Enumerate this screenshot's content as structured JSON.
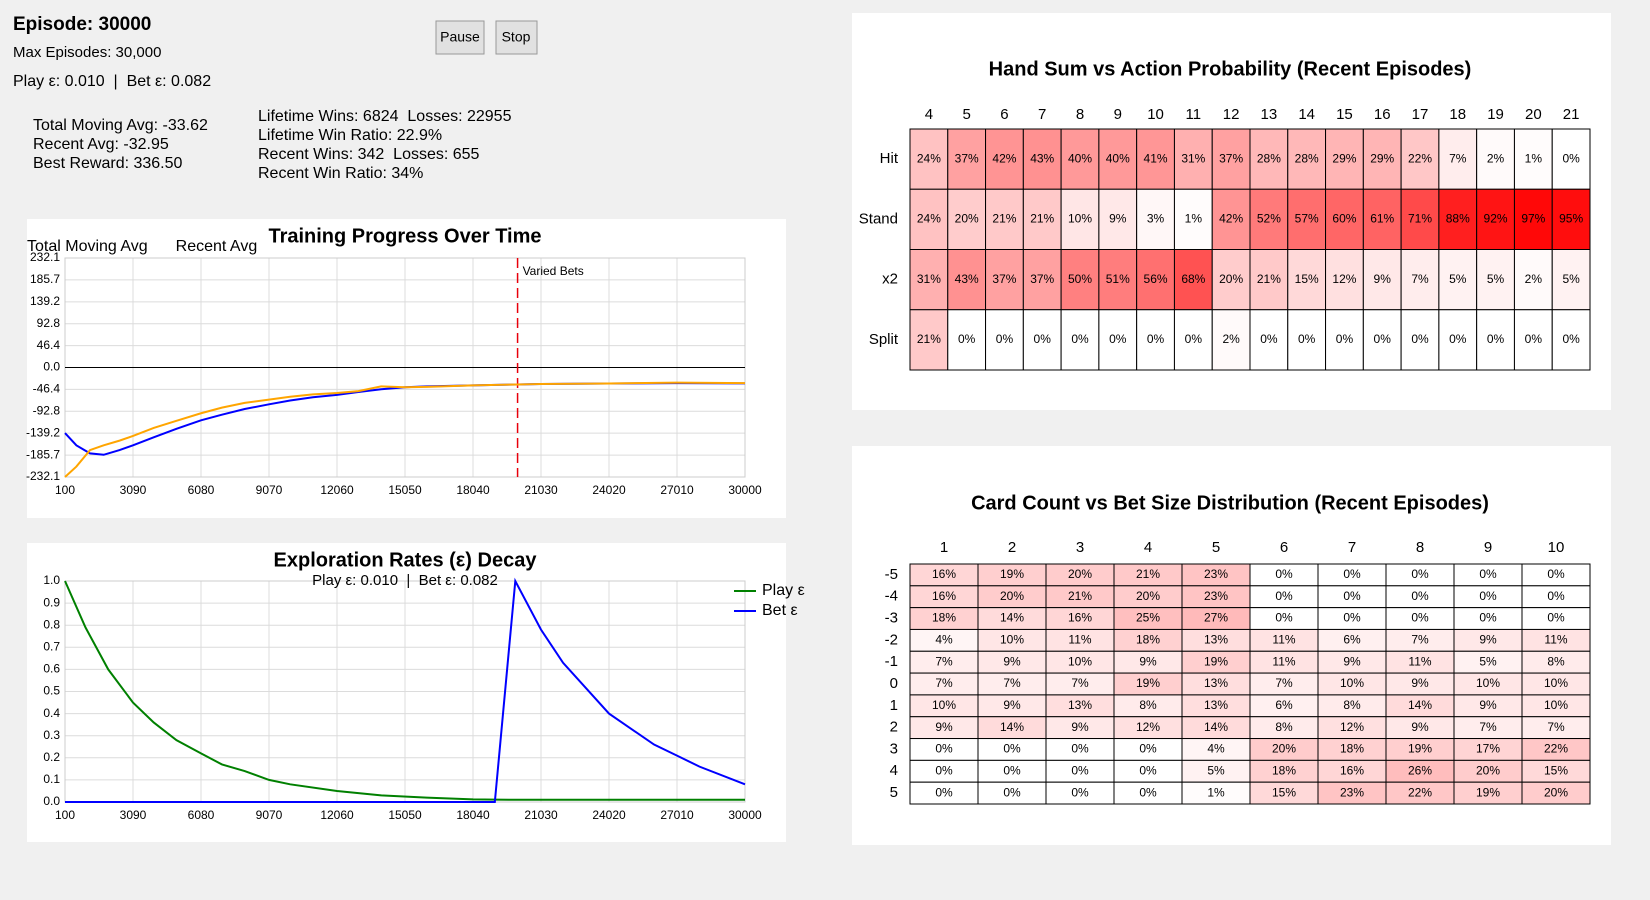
{
  "header": {
    "episode": "Episode: 30000",
    "max_episodes": "Max Episodes: 30,000",
    "epsilons": "Play ε: 0.010  |  Bet ε: 0.082",
    "buttons": [
      "Pause",
      "Stop"
    ],
    "stats_left": [
      "Total Moving Avg: -33.62",
      "Recent Avg: -32.95",
      "Best Reward: 336.50"
    ],
    "stats_right": [
      "Lifetime Wins: 6824  Losses: 22955",
      "Lifetime Win Ratio: 22.9%",
      "Recent Wins: 342  Losses: 655",
      "Recent Win Ratio: 34%"
    ]
  },
  "chart_data": [
    {
      "type": "line",
      "title": "Training Progress Over Time",
      "x": [
        100,
        600,
        1200,
        1800,
        2500,
        3090,
        4000,
        5000,
        6080,
        7000,
        8000,
        9070,
        10000,
        11000,
        12060,
        13000,
        14000,
        15050,
        16000,
        18040,
        20000,
        21030,
        24020,
        27010,
        30000
      ],
      "xlim": [
        100,
        30000
      ],
      "xticks": [
        100,
        3090,
        6080,
        9070,
        12060,
        15050,
        18040,
        21030,
        24020,
        27010,
        30000
      ],
      "ylim": [
        -232.1,
        232.1
      ],
      "yticks": [
        232.1,
        185.7,
        139.2,
        92.8,
        46.4,
        {
          "value": 0,
          "label": "0.0"
        },
        -46.4,
        -92.8,
        -139.2,
        -185.7,
        -232.1
      ],
      "grid": true,
      "zero_line": true,
      "legend": "top-left",
      "series": [
        {
          "name": "Total Moving Avg",
          "color": "#0000ff",
          "values": [
            -139,
            -165,
            -182,
            -185,
            -175,
            -165,
            -148,
            -130,
            -112,
            -100,
            -88,
            -78,
            -70,
            -63,
            -58,
            -52,
            -46,
            -42,
            -40,
            -38,
            -36,
            -35,
            -34,
            -33,
            -33.62
          ]
        },
        {
          "name": "Recent Avg",
          "color": "#ffa500",
          "values": [
            -232,
            -210,
            -175,
            -165,
            -155,
            -145,
            -128,
            -113,
            -97,
            -85,
            -75,
            -68,
            -62,
            -57,
            -54,
            -50,
            -40,
            -42,
            -41,
            -38,
            -36,
            -35,
            -34,
            -32,
            -33
          ]
        }
      ],
      "annotations": [
        {
          "x": 20000,
          "text": "Varied Bets",
          "color": "#e8000b"
        }
      ]
    },
    {
      "type": "line",
      "title": "Exploration Rates (ε) Decay",
      "subtitle": "Play ε: 0.010  |  Bet ε: 0.082",
      "x": [
        100,
        1000,
        2000,
        3090,
        4000,
        5000,
        6080,
        7000,
        8000,
        9070,
        10000,
        12060,
        14000,
        16000,
        18040,
        19000,
        19900,
        21030,
        22000,
        24020,
        26000,
        27010,
        28000,
        30000
      ],
      "xlim": [
        100,
        30000
      ],
      "xticks": [
        100,
        3090,
        6080,
        9070,
        12060,
        15050,
        18040,
        21030,
        24020,
        27010,
        30000
      ],
      "ylim": [
        0,
        1
      ],
      "yticks": [
        {
          "value": 0,
          "label": "0.0"
        },
        0.1,
        0.2,
        0.3,
        0.4,
        0.5,
        0.6,
        0.7,
        0.8,
        0.9,
        {
          "value": 1,
          "label": "1.0"
        }
      ],
      "grid": true,
      "legend": "upper-right",
      "series": [
        {
          "name": "Play ε",
          "color": "#008000",
          "values": [
            1.0,
            0.79,
            0.6,
            0.45,
            0.36,
            0.28,
            0.22,
            0.17,
            0.14,
            0.1,
            0.08,
            0.05,
            0.03,
            0.02,
            0.012,
            0.011,
            0.01,
            0.01,
            0.01,
            0.01,
            0.01,
            0.01,
            0.01,
            0.01
          ]
        },
        {
          "name": "Bet ε",
          "color": "#0000ff",
          "values": [
            0,
            0,
            0,
            0,
            0,
            0,
            0,
            0,
            0,
            0,
            0,
            0,
            0,
            0,
            0,
            0,
            1.0,
            0.78,
            0.63,
            0.4,
            0.26,
            0.21,
            0.16,
            0.08
          ]
        }
      ]
    },
    {
      "type": "heatmap",
      "title": "Hand Sum vs Action Probability (Recent Episodes)",
      "columns": [
        4,
        5,
        6,
        7,
        8,
        9,
        10,
        11,
        12,
        13,
        14,
        15,
        16,
        17,
        18,
        19,
        20,
        21
      ],
      "rows": [
        "Hit",
        "Stand",
        "x2",
        "Split"
      ],
      "color": "#ff0000",
      "zlim": [
        0,
        100
      ],
      "values": [
        [
          24,
          37,
          42,
          43,
          40,
          40,
          41,
          31,
          37,
          28,
          28,
          29,
          29,
          22,
          7,
          2,
          1,
          0
        ],
        [
          24,
          20,
          21,
          21,
          10,
          9,
          3,
          1,
          42,
          52,
          57,
          60,
          61,
          71,
          88,
          92,
          97,
          95
        ],
        [
          31,
          43,
          37,
          37,
          50,
          51,
          56,
          68,
          20,
          21,
          15,
          12,
          9,
          7,
          5,
          5,
          2,
          5
        ],
        [
          21,
          0,
          0,
          0,
          0,
          0,
          0,
          0,
          2,
          0,
          0,
          0,
          0,
          0,
          0,
          0,
          0,
          0
        ]
      ],
      "value_labels": [
        [
          "24%",
          "37%",
          "42%",
          "43%",
          "40%",
          "40%",
          "41%",
          "31%",
          "37%",
          "28%",
          "28%",
          "29%",
          "29%",
          "22%",
          "7%",
          "2%",
          "1%",
          "0%"
        ],
        [
          "24%",
          "20%",
          "21%",
          "21%",
          "10%",
          "9%",
          "3%",
          "1%",
          "42%",
          "52%",
          "57%",
          "60%",
          "61%",
          "71%",
          "88%",
          "92%",
          "97%",
          "95%"
        ],
        [
          "31%",
          "43%",
          "37%",
          "37%",
          "50%",
          "51%",
          "56%",
          "68%",
          "20%",
          "21%",
          "15%",
          "12%",
          "9%",
          "7%",
          "5%",
          "5%",
          "2%",
          "5%"
        ],
        [
          "21%",
          "0%",
          "0%",
          "0%",
          "0%",
          "0%",
          "0%",
          "0%",
          "2%",
          "0%",
          "0%",
          "0%",
          "0%",
          "0%",
          "0%",
          "0%",
          "0%",
          "0%"
        ]
      ]
    },
    {
      "type": "heatmap",
      "title": "Card Count vs Bet Size Distribution (Recent Episodes)",
      "columns": [
        1,
        2,
        3,
        4,
        5,
        6,
        7,
        8,
        9,
        10
      ],
      "rows": [
        -5,
        -4,
        -3,
        -2,
        -1,
        0,
        1,
        2,
        3,
        4,
        5
      ],
      "color": "#ff0000",
      "zlim": [
        0,
        100
      ],
      "values": [
        [
          16,
          19,
          20,
          21,
          23,
          0,
          0,
          0,
          0,
          0
        ],
        [
          16,
          20,
          21,
          20,
          23,
          0,
          0,
          0,
          0,
          0
        ],
        [
          18,
          14,
          16,
          25,
          27,
          0,
          0,
          0,
          0,
          0
        ],
        [
          4,
          10,
          11,
          18,
          13,
          11,
          6,
          7,
          9,
          11
        ],
        [
          7,
          9,
          10,
          9,
          19,
          11,
          9,
          11,
          5,
          8
        ],
        [
          7,
          7,
          7,
          19,
          13,
          7,
          10,
          9,
          10,
          10
        ],
        [
          10,
          9,
          13,
          8,
          13,
          6,
          8,
          14,
          9,
          10
        ],
        [
          9,
          14,
          9,
          12,
          14,
          8,
          12,
          9,
          7,
          7
        ],
        [
          0,
          0,
          0,
          0,
          4,
          20,
          18,
          19,
          17,
          22
        ],
        [
          0,
          0,
          0,
          0,
          5,
          18,
          16,
          26,
          20,
          15
        ],
        [
          0,
          0,
          0,
          0,
          1,
          15,
          23,
          22,
          19,
          20
        ]
      ],
      "value_labels": [
        [
          "16%",
          "19%",
          "20%",
          "21%",
          "23%",
          "0%",
          "0%",
          "0%",
          "0%",
          "0%"
        ],
        [
          "16%",
          "20%",
          "21%",
          "20%",
          "23%",
          "0%",
          "0%",
          "0%",
          "0%",
          "0%"
        ],
        [
          "18%",
          "14%",
          "16%",
          "25%",
          "27%",
          "0%",
          "0%",
          "0%",
          "0%",
          "0%"
        ],
        [
          "4%",
          "10%",
          "11%",
          "18%",
          "13%",
          "11%",
          "6%",
          "7%",
          "9%",
          "11%"
        ],
        [
          "7%",
          "9%",
          "10%",
          "9%",
          "19%",
          "11%",
          "9%",
          "11%",
          "5%",
          "8%"
        ],
        [
          "7%",
          "7%",
          "7%",
          "19%",
          "13%",
          "7%",
          "10%",
          "9%",
          "10%",
          "10%"
        ],
        [
          "10%",
          "9%",
          "13%",
          "8%",
          "13%",
          "6%",
          "8%",
          "14%",
          "9%",
          "10%"
        ],
        [
          "9%",
          "14%",
          "9%",
          "12%",
          "14%",
          "8%",
          "12%",
          "9%",
          "7%",
          "7%"
        ],
        [
          "0%",
          "0%",
          "0%",
          "0%",
          "4%",
          "20%",
          "18%",
          "19%",
          "17%",
          "22%"
        ],
        [
          "0%",
          "0%",
          "0%",
          "0%",
          "5%",
          "18%",
          "16%",
          "26%",
          "20%",
          "15%"
        ],
        [
          "0%",
          "0%",
          "0%",
          "0%",
          "1%",
          "15%",
          "23%",
          "22%",
          "19%",
          "20%"
        ]
      ]
    }
  ]
}
